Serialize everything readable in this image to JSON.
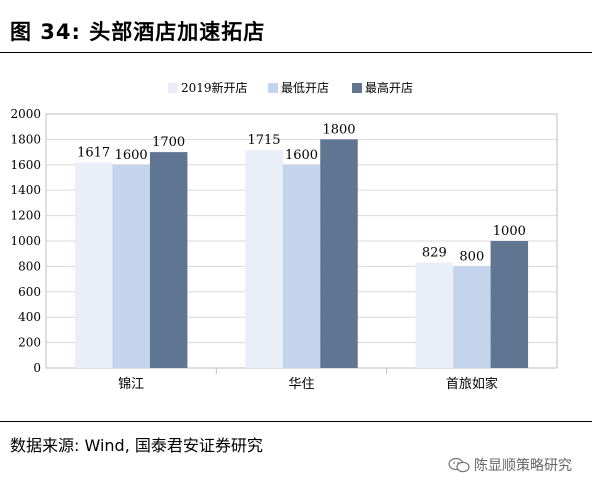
{
  "figure": {
    "title": "图 34:  头部酒店加速拓店",
    "source": "数据来源:  Wind, 国泰君安证券研究",
    "watermark": "陈显顺策略研究",
    "watermark_icon": "wechat-icon"
  },
  "chart_data": {
    "type": "bar",
    "categories": [
      "锦江",
      "华住",
      "首旅如家"
    ],
    "series": [
      {
        "name": "2019新开店",
        "values": [
          1617,
          1715,
          829
        ],
        "color": "#e9eef7"
      },
      {
        "name": "最低开店",
        "values": [
          1600,
          1600,
          800
        ],
        "color": "#c4d4ec"
      },
      {
        "name": "最高开店",
        "values": [
          1700,
          1800,
          1000
        ],
        "color": "#5f7591"
      }
    ],
    "ylim": [
      0,
      2000
    ],
    "yticks": [
      0,
      200,
      400,
      600,
      800,
      1000,
      1200,
      1400,
      1600,
      1800,
      2000
    ],
    "grid": true,
    "legend": "top",
    "title": "",
    "xlabel": "",
    "ylabel": ""
  }
}
